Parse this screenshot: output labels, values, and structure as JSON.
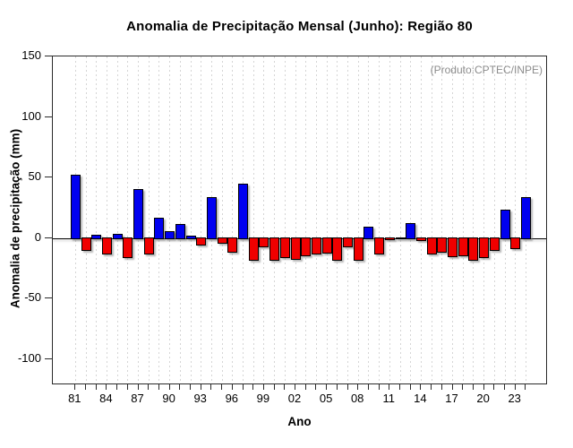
{
  "title": "Anomalia de Precipitação Mensal (Junho): Região 80",
  "annotation": "(Produto:CPTEC/INPE)",
  "y_axis": {
    "label": "Anomalia de precipitação (mm)",
    "tick_values": [
      150,
      100,
      50,
      0,
      -50,
      -100
    ]
  },
  "x_axis": {
    "label": "Ano",
    "tick_labels": [
      "81",
      "84",
      "87",
      "90",
      "93",
      "96",
      "99",
      "02",
      "05",
      "08",
      "11",
      "14",
      "17",
      "20",
      "23"
    ]
  },
  "chart_data": {
    "type": "bar",
    "title": "Anomalia de Precipitação Mensal (Junho): Região 80",
    "xlabel": "Ano",
    "ylabel": "Anomalia de precipitação (mm)",
    "annotation": "(Produto:CPTEC/INPE)",
    "ylim": [
      -120,
      150
    ],
    "y_ticks": [
      150,
      100,
      50,
      0,
      -50,
      -100
    ],
    "grid": "vertical-dashed-per-year",
    "legend": null,
    "positive_color": "#0000f0",
    "negative_color": "#f00000",
    "bar_border_color": "#000000",
    "x": [
      1981,
      1982,
      1983,
      1984,
      1985,
      1986,
      1987,
      1988,
      1989,
      1990,
      1991,
      1992,
      1993,
      1994,
      1995,
      1996,
      1997,
      1998,
      1999,
      2000,
      2001,
      2002,
      2003,
      2004,
      2005,
      2006,
      2007,
      2008,
      2009,
      2010,
      2011,
      2012,
      2013,
      2014,
      2015,
      2016,
      2017,
      2018,
      2019,
      2020,
      2021,
      2022,
      2023,
      2024
    ],
    "values": [
      52,
      -10,
      2,
      -13,
      3,
      -16,
      40,
      -13,
      16,
      5,
      11,
      1,
      -5,
      33,
      -4,
      -11,
      44,
      -18,
      -7,
      -18,
      -16,
      -17,
      -14,
      -13,
      -12,
      -18,
      -7,
      -18,
      9,
      -13,
      -1,
      0,
      12,
      -2,
      -13,
      -11,
      -15,
      -14,
      -18,
      -16,
      -10,
      23,
      -8,
      33
    ]
  }
}
